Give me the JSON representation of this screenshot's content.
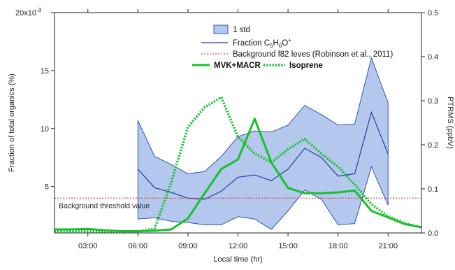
{
  "chart_data": {
    "type": "line",
    "xlabel": "Local time (hr)",
    "ylabel_left": "Fraction of total organics (%)",
    "ylabel_right": "PTRMS (ppbV)",
    "left_exponent_label": "x10",
    "left_exponent_prefix": "20",
    "left_exponent_power": "-3",
    "x_ticks": [
      "03:00",
      "06:00",
      "09:00",
      "12:00",
      "15:00",
      "18:00",
      "21:00"
    ],
    "x_tick_values": [
      3,
      6,
      9,
      12,
      15,
      18,
      21
    ],
    "xlim": [
      1,
      23
    ],
    "ylim_left": [
      0.001,
      0.02
    ],
    "yticks_left": [
      {
        "value": 0.005,
        "label": "5"
      },
      {
        "value": 0.01,
        "label": "10"
      },
      {
        "value": 0.015,
        "label": "15"
      }
    ],
    "ylim_right": [
      0,
      0.5
    ],
    "yticks_right": [
      {
        "value": 0.0,
        "label": "0.0"
      },
      {
        "value": 0.1,
        "label": "0.1"
      },
      {
        "value": 0.2,
        "label": "0.2"
      },
      {
        "value": 0.3,
        "label": "0.3"
      },
      {
        "value": 0.4,
        "label": "0.4"
      },
      {
        "value": 0.5,
        "label": "0.5"
      }
    ],
    "background_threshold": 0.004,
    "background_label": "Background threshold value",
    "legend": {
      "std_label": "1 std",
      "fraction_label_pre": "Fraction C",
      "fraction_sub1": "5",
      "fraction_mid": "H",
      "fraction_sub2": "6",
      "fraction_mid2": "O",
      "fraction_sup": "+",
      "background_label": "Background f82 leves (Robinson et al., 2011)",
      "mvk_label": "MVK+MACR",
      "isoprene_label": "Isoprene"
    },
    "series": [
      {
        "name": "Fraction C5H6O+",
        "axis": "left",
        "x": [
          6,
          7,
          8,
          9,
          10,
          11,
          12,
          13,
          14,
          15,
          16,
          17,
          18,
          19,
          20,
          21
        ],
        "y": [
          0.0065,
          0.0049,
          0.0045,
          0.004,
          0.0039,
          0.0046,
          0.0058,
          0.006,
          0.0055,
          0.0065,
          0.0083,
          0.0075,
          0.0059,
          0.0061,
          0.0114,
          0.0078
        ]
      },
      {
        "name": "1 std upper",
        "axis": "left",
        "x": [
          6,
          7,
          8,
          9,
          10,
          11,
          12,
          13,
          14,
          15,
          16,
          17,
          18,
          19,
          20,
          21
        ],
        "y": [
          0.0107,
          0.0076,
          0.0069,
          0.0061,
          0.0063,
          0.0076,
          0.0093,
          0.0098,
          0.0097,
          0.0103,
          0.012,
          0.0112,
          0.0103,
          0.0104,
          0.0161,
          0.0122
        ]
      },
      {
        "name": "1 std lower",
        "axis": "left",
        "x": [
          6,
          7,
          8,
          9,
          10,
          11,
          12,
          13,
          14,
          15,
          16,
          17,
          18,
          19,
          20,
          21
        ],
        "y": [
          0.0022,
          0.0023,
          0.002,
          0.0019,
          0.0017,
          0.0017,
          0.0024,
          0.0022,
          0.0013,
          0.0029,
          0.0047,
          0.0039,
          0.0017,
          0.0018,
          0.0067,
          0.0034
        ]
      },
      {
        "name": "MVK+MACR",
        "axis": "right",
        "x": [
          1,
          2,
          3,
          4,
          5,
          6,
          7,
          8,
          9,
          10,
          11,
          12,
          13,
          14,
          15,
          16,
          17,
          18,
          19,
          20,
          21,
          22,
          23
        ],
        "y": [
          0.008,
          0.008,
          0.009,
          0.006,
          0.004,
          0.004,
          0.005,
          0.008,
          0.033,
          0.09,
          0.145,
          0.167,
          0.259,
          0.16,
          0.102,
          0.09,
          0.09,
          0.092,
          0.096,
          0.05,
          0.035,
          0.02,
          0.013
        ]
      },
      {
        "name": "Isoprene",
        "axis": "right",
        "x": [
          1,
          2,
          3,
          4,
          5,
          6,
          7,
          8,
          9,
          10,
          11,
          12,
          13,
          14,
          15,
          16,
          17,
          18,
          19,
          20,
          21,
          22,
          23
        ],
        "y": [
          0.004,
          0.004,
          0.004,
          0.003,
          0.002,
          0.003,
          0.01,
          0.115,
          0.24,
          0.285,
          0.308,
          0.218,
          0.18,
          0.16,
          0.19,
          0.213,
          0.18,
          0.15,
          0.11,
          0.065,
          0.038,
          0.022,
          0.012
        ]
      }
    ],
    "colors": {
      "band_fill": "#b4c8ee",
      "band_edge": "#2f54b0",
      "fraction_line": "#1f3f9e",
      "green": "#17c12b",
      "background_line": "#e0201f",
      "axis": "#222222"
    }
  }
}
